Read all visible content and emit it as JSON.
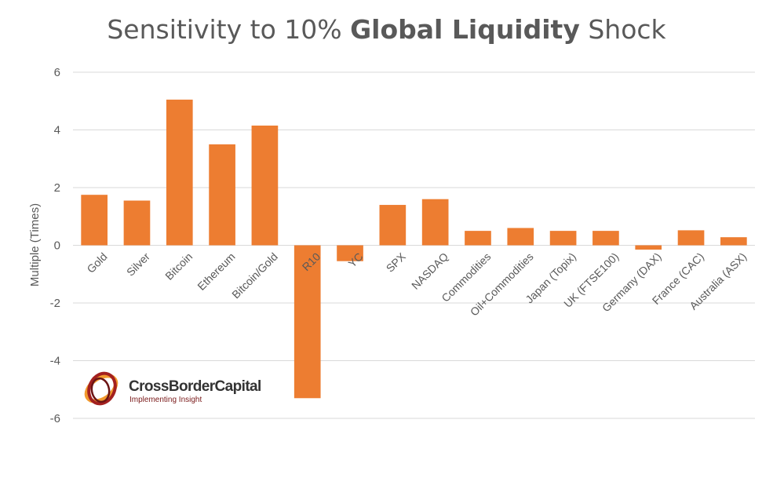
{
  "chart_data": {
    "type": "bar",
    "title": {
      "prefix": "Sensitivity to 10% ",
      "emphasis": "Global Liquidity",
      "suffix": " Shock"
    },
    "ylabel": "Multiple (Times)",
    "xlabel": "",
    "ylim": [
      -6,
      6
    ],
    "yticks": [
      6,
      4,
      2,
      0,
      -2,
      -4,
      -6
    ],
    "grid": true,
    "bar_color": "#ED7D31",
    "categories": [
      "Gold",
      "Silver",
      "Bitcoin",
      "Ethereum",
      "Bitcoin/Gold",
      "R10",
      "YC",
      "SPX",
      "NASDAQ",
      "Commodities",
      "Oil+Commodities",
      "Japan (Topix)",
      "UK (FTSE100)",
      "Germany (DAX)",
      "France (CAC)",
      "Australia (ASX)"
    ],
    "values": [
      1.75,
      1.55,
      5.05,
      3.5,
      4.15,
      -5.3,
      -0.55,
      1.4,
      1.6,
      0.5,
      0.6,
      0.5,
      0.5,
      -0.15,
      0.52,
      0.28
    ]
  },
  "logo": {
    "name": "CrossBorderCapital",
    "tagline": "Implementing Insight"
  }
}
